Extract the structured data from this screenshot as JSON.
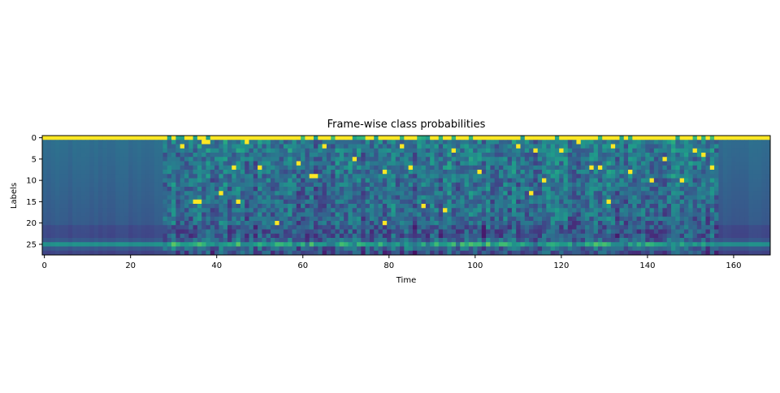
{
  "chart_data": {
    "type": "heatmap",
    "title": "Frame-wise class probabilities",
    "xlabel": "Time",
    "ylabel": "Labels",
    "n_columns": 169,
    "n_rows": 28,
    "xlim": [
      -0.5,
      168.5
    ],
    "ylim": [
      27.5,
      -0.5
    ],
    "xticks": [
      0,
      20,
      40,
      60,
      80,
      100,
      120,
      140,
      160
    ],
    "yticks": [
      0,
      5,
      10,
      15,
      20,
      25
    ],
    "colormap": "viridis",
    "grid": false,
    "peaks": [
      [
        32,
        2
      ],
      [
        37,
        1
      ],
      [
        38,
        1
      ],
      [
        35,
        15
      ],
      [
        36,
        15
      ],
      [
        44,
        7
      ],
      [
        41,
        13
      ],
      [
        45,
        15
      ],
      [
        47,
        1
      ],
      [
        50,
        7
      ],
      [
        54,
        20
      ],
      [
        59,
        6
      ],
      [
        62,
        9
      ],
      [
        63,
        9
      ],
      [
        65,
        2
      ],
      [
        72,
        5
      ],
      [
        79,
        8
      ],
      [
        79,
        20
      ],
      [
        83,
        2
      ],
      [
        85,
        7
      ],
      [
        88,
        16
      ],
      [
        93,
        17
      ],
      [
        95,
        3
      ],
      [
        101,
        8
      ],
      [
        110,
        2
      ],
      [
        113,
        13
      ],
      [
        114,
        3
      ],
      [
        116,
        10
      ],
      [
        120,
        3
      ],
      [
        124,
        1
      ],
      [
        127,
        7
      ],
      [
        129,
        7
      ],
      [
        131,
        15
      ],
      [
        132,
        2
      ],
      [
        136,
        8
      ],
      [
        141,
        10
      ],
      [
        144,
        5
      ],
      [
        148,
        10
      ],
      [
        151,
        3
      ],
      [
        153,
        4
      ],
      [
        155,
        7
      ]
    ],
    "peak_row_default": 0
  }
}
